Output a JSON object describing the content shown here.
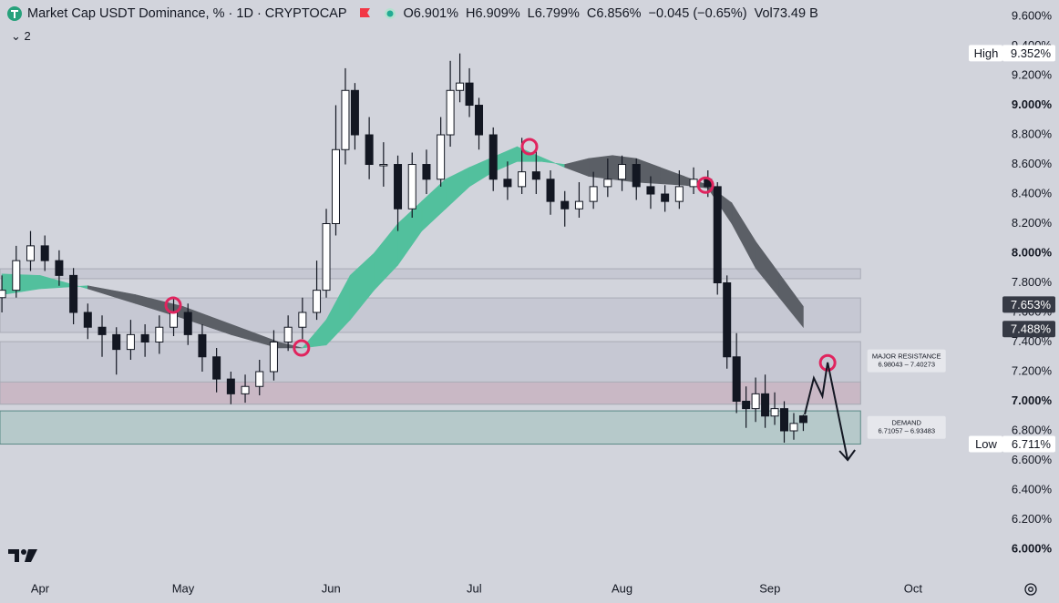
{
  "chart_data": {
    "type": "candlestick",
    "title": "Market Cap USDT Dominance, % · 1D · CRYPTOCAP",
    "ohlc_legend": [
      "O6.901%",
      "H6.909%",
      "L6.799%",
      "C6.856%",
      "−0.045 (−0.65%)",
      "Vol73.49 B"
    ],
    "indicator_count": "2",
    "xlim": [
      -8.4,
      200.8
    ],
    "xticks": [
      {
        "value": 0,
        "label": "Apr"
      },
      {
        "value": 30,
        "label": "May"
      },
      {
        "value": 61,
        "label": "Jun"
      },
      {
        "value": 91,
        "label": "Jul"
      },
      {
        "value": 122,
        "label": "Aug"
      },
      {
        "value": 153,
        "label": "Sep"
      },
      {
        "value": 183,
        "label": "Oct"
      }
    ],
    "ylim": [
      5.846,
      9.711
    ],
    "yticks": [
      {
        "value": 6.0,
        "label": "6.000%"
      },
      {
        "value": 6.2,
        "label": "6.200%"
      },
      {
        "value": 6.4,
        "label": "6.400%"
      },
      {
        "value": 6.6,
        "label": "6.600%"
      },
      {
        "value": 6.8,
        "label": "6.800%"
      },
      {
        "value": 7.0,
        "label": "7.000%"
      },
      {
        "value": 7.2,
        "label": "7.200%"
      },
      {
        "value": 7.4,
        "label": "7.400%"
      },
      {
        "value": 7.6,
        "label": "7.600%"
      },
      {
        "value": 7.8,
        "label": "7.800%"
      },
      {
        "value": 8.0,
        "label": "8.000%"
      },
      {
        "value": 8.2,
        "label": "8.200%"
      },
      {
        "value": 8.4,
        "label": "8.400%"
      },
      {
        "value": 8.6,
        "label": "8.600%"
      },
      {
        "value": 8.8,
        "label": "8.800%"
      },
      {
        "value": 9.0,
        "label": "9.000%"
      },
      {
        "value": 9.2,
        "label": "9.200%"
      },
      {
        "value": 9.4,
        "label": "9.400%"
      },
      {
        "value": 9.6,
        "label": "9.600%"
      }
    ],
    "up_color": "#ffffff",
    "down_color": "#131722",
    "candles": [
      [
        -8,
        7.7,
        7.85,
        7.6,
        7.75
      ],
      [
        -5,
        7.75,
        8.05,
        7.7,
        7.95
      ],
      [
        -2,
        7.95,
        8.15,
        7.88,
        8.05
      ],
      [
        1,
        8.05,
        8.12,
        7.88,
        7.95
      ],
      [
        4,
        7.95,
        8.02,
        7.78,
        7.85
      ],
      [
        7,
        7.85,
        7.9,
        7.52,
        7.6
      ],
      [
        10,
        7.6,
        7.66,
        7.42,
        7.5
      ],
      [
        13,
        7.5,
        7.58,
        7.3,
        7.45
      ],
      [
        16,
        7.45,
        7.5,
        7.18,
        7.35
      ],
      [
        19,
        7.35,
        7.55,
        7.28,
        7.45
      ],
      [
        22,
        7.45,
        7.52,
        7.3,
        7.4
      ],
      [
        25,
        7.4,
        7.58,
        7.32,
        7.5
      ],
      [
        28,
        7.5,
        7.7,
        7.44,
        7.6
      ],
      [
        31,
        7.6,
        7.66,
        7.38,
        7.45
      ],
      [
        34,
        7.45,
        7.52,
        7.2,
        7.3
      ],
      [
        37,
        7.3,
        7.36,
        7.06,
        7.15
      ],
      [
        40,
        7.15,
        7.2,
        6.98,
        7.05
      ],
      [
        43,
        7.05,
        7.18,
        6.99,
        7.1
      ],
      [
        46,
        7.1,
        7.28,
        7.04,
        7.2
      ],
      [
        49,
        7.2,
        7.48,
        7.14,
        7.4
      ],
      [
        52,
        7.4,
        7.58,
        7.34,
        7.5
      ],
      [
        55,
        7.5,
        7.7,
        7.42,
        7.6
      ],
      [
        58,
        7.6,
        7.95,
        7.55,
        7.75
      ],
      [
        60,
        7.75,
        8.3,
        7.7,
        8.2
      ],
      [
        62,
        8.2,
        9.0,
        8.12,
        8.7
      ],
      [
        64,
        8.7,
        9.25,
        8.6,
        9.1
      ],
      [
        66,
        9.1,
        9.15,
        8.7,
        8.8
      ],
      [
        69,
        8.8,
        8.92,
        8.5,
        8.6
      ],
      [
        72,
        8.6,
        8.75,
        8.45,
        8.6
      ],
      [
        75,
        8.6,
        8.66,
        8.15,
        8.3
      ],
      [
        78,
        8.3,
        8.68,
        8.24,
        8.6
      ],
      [
        81,
        8.6,
        8.7,
        8.4,
        8.5
      ],
      [
        84,
        8.5,
        8.92,
        8.45,
        8.8
      ],
      [
        86,
        8.8,
        9.3,
        8.72,
        9.1
      ],
      [
        88,
        9.1,
        9.35,
        9.02,
        9.15
      ],
      [
        90,
        9.15,
        9.25,
        8.92,
        9.0
      ],
      [
        92,
        9.0,
        9.05,
        8.7,
        8.8
      ],
      [
        95,
        8.8,
        8.85,
        8.42,
        8.5
      ],
      [
        98,
        8.5,
        8.62,
        8.36,
        8.45
      ],
      [
        101,
        8.45,
        8.78,
        8.4,
        8.55
      ],
      [
        104,
        8.55,
        8.72,
        8.4,
        8.5
      ],
      [
        107,
        8.5,
        8.56,
        8.26,
        8.35
      ],
      [
        110,
        8.35,
        8.42,
        8.18,
        8.3
      ],
      [
        113,
        8.3,
        8.48,
        8.24,
        8.35
      ],
      [
        116,
        8.35,
        8.55,
        8.3,
        8.45
      ],
      [
        119,
        8.45,
        8.64,
        8.38,
        8.5
      ],
      [
        122,
        8.5,
        8.66,
        8.42,
        8.6
      ],
      [
        125,
        8.6,
        8.64,
        8.36,
        8.45
      ],
      [
        128,
        8.45,
        8.52,
        8.3,
        8.4
      ],
      [
        131,
        8.4,
        8.46,
        8.28,
        8.35
      ],
      [
        134,
        8.35,
        8.56,
        8.3,
        8.45
      ],
      [
        137,
        8.45,
        8.58,
        8.4,
        8.5
      ],
      [
        140,
        8.5,
        8.56,
        8.38,
        8.45
      ],
      [
        142,
        8.45,
        8.48,
        7.72,
        7.8
      ],
      [
        144,
        7.8,
        7.85,
        7.22,
        7.3
      ],
      [
        146,
        7.3,
        7.46,
        6.92,
        7.0
      ],
      [
        148,
        7.0,
        7.1,
        6.82,
        6.95
      ],
      [
        150,
        6.95,
        7.16,
        6.86,
        7.05
      ],
      [
        152,
        7.05,
        7.18,
        6.82,
        6.9
      ],
      [
        154,
        6.9,
        7.06,
        6.84,
        6.95
      ],
      [
        156,
        6.95,
        7.0,
        6.72,
        6.8
      ],
      [
        158,
        6.8,
        6.92,
        6.74,
        6.85
      ],
      [
        160,
        6.901,
        6.909,
        6.799,
        6.856
      ]
    ],
    "cloud": {
      "x": [
        -8,
        0,
        10,
        20,
        30,
        40,
        50,
        55,
        60,
        65,
        70,
        75,
        80,
        85,
        90,
        95,
        100,
        105,
        110,
        115,
        120,
        125,
        130,
        135,
        140,
        145,
        150,
        155,
        160
      ],
      "a": [
        7.86,
        7.85,
        7.76,
        7.66,
        7.56,
        7.45,
        7.36,
        7.36,
        7.55,
        7.85,
        8.0,
        8.2,
        8.35,
        8.5,
        8.58,
        8.65,
        8.72,
        8.65,
        8.58,
        8.52,
        8.5,
        8.48,
        8.47,
        8.46,
        8.44,
        8.2,
        7.9,
        7.7,
        7.5
      ],
      "b": [
        7.72,
        7.76,
        7.78,
        7.72,
        7.64,
        7.52,
        7.4,
        7.36,
        7.38,
        7.55,
        7.75,
        7.92,
        8.15,
        8.3,
        8.45,
        8.55,
        8.62,
        8.62,
        8.6,
        8.64,
        8.66,
        8.64,
        8.58,
        8.52,
        8.46,
        8.34,
        8.08,
        7.86,
        7.64
      ],
      "up_color": "#52c09d",
      "down_color": "#5b5f66"
    },
    "zones": [
      {
        "x_range": [
          -8.4,
          172
        ],
        "range": [
          7.828,
          7.895
        ],
        "color": "#c4c7d1"
      },
      {
        "x_range": [
          -8.4,
          172
        ],
        "range": [
          7.465,
          7.698
        ],
        "color": "#c4c7d1"
      },
      {
        "x_range": [
          -8.4,
          172
        ],
        "range": [
          6.98043,
          7.40273
        ],
        "color": "#c4c7d1"
      },
      {
        "x_range": [
          -8.4,
          172
        ],
        "range": [
          6.98043,
          7.13
        ],
        "color": "#c9b6c3"
      },
      {
        "x_range": [
          -8.4,
          172
        ],
        "range": [
          6.71057,
          6.93483
        ],
        "color": "#b2c8c8"
      }
    ],
    "annotations": [
      {
        "text": "MAJOR RESISTANCE",
        "range_text": "6.98043 – 7.40273",
        "x": 174,
        "y": 7.27
      },
      {
        "text": "DEMAND",
        "range_text": "6.71057 – 6.93483",
        "x": 174,
        "y": 6.82
      }
    ],
    "circles": [
      [
        27.9,
        7.649
      ],
      [
        54.8,
        7.36
      ],
      [
        102.6,
        8.72
      ],
      [
        139.5,
        8.46
      ],
      [
        165.1,
        7.26
      ]
    ],
    "circle_color": "#e0245e",
    "projection": {
      "x": [
        160.3,
        162.2,
        164,
        165.1,
        169.3
      ],
      "y": [
        6.911,
        7.157,
        7.034,
        7.262,
        6.603
      ]
    },
    "price_labels": [
      {
        "name": "High",
        "value": 9.352,
        "label": "9.352%",
        "color": "#ffffff"
      },
      {
        "value": 7.653,
        "label": "7.653%",
        "color": "#363a45"
      },
      {
        "value": 7.488,
        "label": "7.488%",
        "color": "#363a45"
      },
      {
        "name": "Low",
        "value": 6.711,
        "label": "6.711%",
        "color": "#ffffff"
      }
    ]
  }
}
